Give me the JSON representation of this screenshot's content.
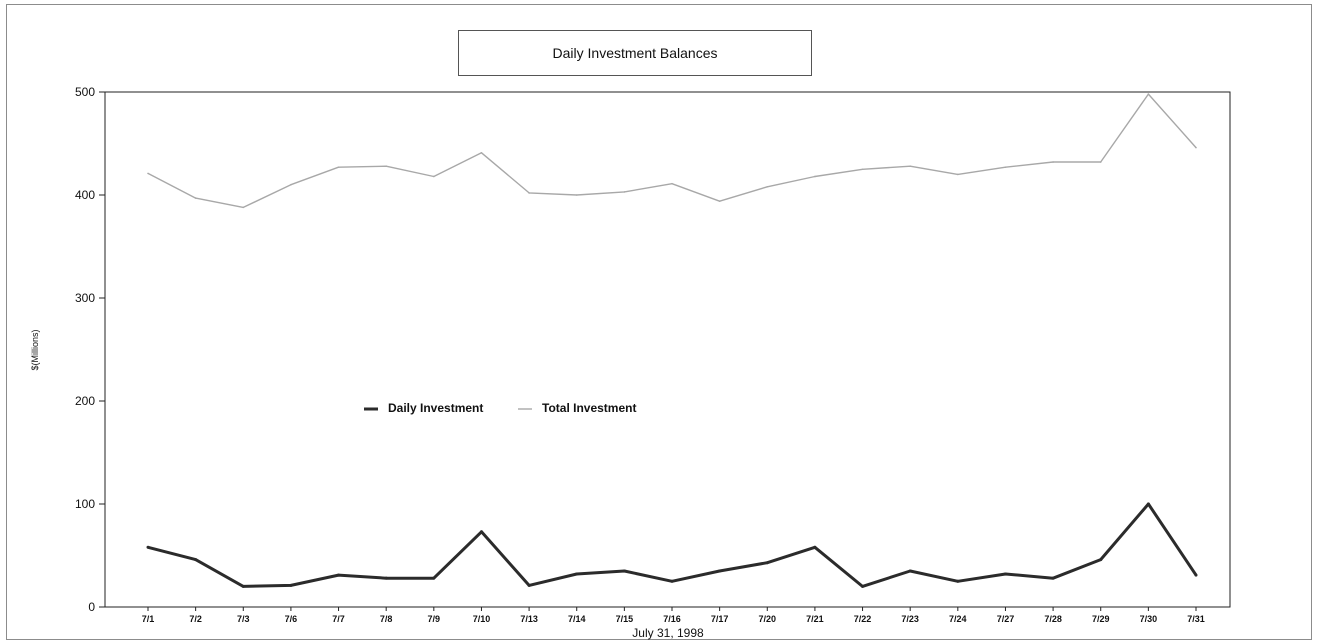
{
  "chart_data": {
    "type": "line",
    "title": "Daily Investment Balances",
    "xlabel": "July 31, 1998",
    "ylabel": "$(Millions)",
    "ylim": [
      0,
      500
    ],
    "yticks": [
      "0",
      "100",
      "200",
      "300",
      "400",
      "500"
    ],
    "categories": [
      "7/1",
      "7/2",
      "7/3",
      "7/6",
      "7/7",
      "7/8",
      "7/9",
      "7/10",
      "7/13",
      "7/14",
      "7/15",
      "7/16",
      "7/17",
      "7/20",
      "7/21",
      "7/22",
      "7/23",
      "7/24",
      "7/27",
      "7/28",
      "7/29",
      "7/30",
      "7/31"
    ],
    "series": [
      {
        "name": "Daily Investment",
        "color": "#2b2b2b",
        "values": [
          58,
          46,
          20,
          21,
          31,
          28,
          28,
          73,
          21,
          32,
          35,
          25,
          35,
          43,
          58,
          20,
          35,
          25,
          32,
          28,
          46,
          100,
          31
        ]
      },
      {
        "name": "Total Investment",
        "color": "#a8a8a8",
        "values": [
          421,
          397,
          388,
          410,
          427,
          428,
          418,
          441,
          402,
          400,
          403,
          411,
          394,
          408,
          418,
          425,
          428,
          420,
          427,
          432,
          432,
          498,
          446
        ]
      }
    ],
    "legend_position": "center-left",
    "grid": false
  }
}
